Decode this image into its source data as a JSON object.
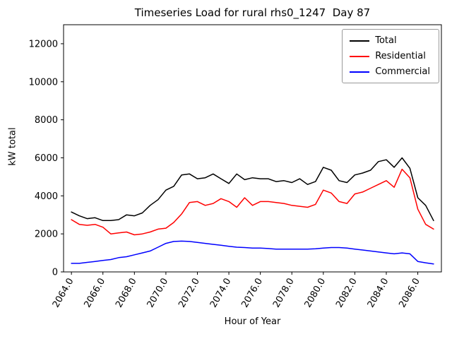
{
  "chart_data": {
    "type": "line",
    "title": "Timeseries Load for rural rhs0_1247  Day 87",
    "xlabel": "Hour of Year",
    "ylabel": "kW total",
    "xlim": [
      2063.5,
      2087.5
    ],
    "ylim": [
      0,
      13000
    ],
    "grid": false,
    "legend_position": "upper right",
    "xticks": {
      "values": [
        2064,
        2066,
        2068,
        2070,
        2072,
        2074,
        2076,
        2078,
        2080,
        2082,
        2084,
        2086
      ],
      "labels": [
        "2064.0",
        "2066.0",
        "2068.0",
        "2070.0",
        "2072.0",
        "2074.0",
        "2076.0",
        "2078.0",
        "2080.0",
        "2082.0",
        "2084.0",
        "2086.0"
      ]
    },
    "yticks": {
      "values": [
        0,
        2000,
        4000,
        6000,
        8000,
        10000,
        12000
      ],
      "labels": [
        "0",
        "2000",
        "4000",
        "6000",
        "8000",
        "10000",
        "12000"
      ]
    },
    "x": [
      2064.0,
      2064.5,
      2065.0,
      2065.5,
      2066.0,
      2066.5,
      2067.0,
      2067.5,
      2068.0,
      2068.5,
      2069.0,
      2069.5,
      2070.0,
      2070.5,
      2071.0,
      2071.5,
      2072.0,
      2072.5,
      2073.0,
      2073.5,
      2074.0,
      2074.5,
      2075.0,
      2075.5,
      2076.0,
      2076.5,
      2077.0,
      2077.5,
      2078.0,
      2078.5,
      2079.0,
      2079.5,
      2080.0,
      2080.5,
      2081.0,
      2081.5,
      2082.0,
      2082.5,
      2083.0,
      2083.5,
      2084.0,
      2084.5,
      2085.0,
      2085.5,
      2086.0,
      2086.5,
      2087.0
    ],
    "series": [
      {
        "name": "Total",
        "color": "#000000",
        "values": [
          3150,
          2950,
          2800,
          2850,
          2700,
          2700,
          2750,
          3000,
          2950,
          3100,
          3500,
          3800,
          4300,
          4500,
          5100,
          5150,
          4900,
          4950,
          5150,
          4900,
          4650,
          5150,
          4850,
          4950,
          4900,
          4900,
          4750,
          4800,
          4700,
          4900,
          4600,
          4750,
          5500,
          5350,
          4800,
          4700,
          5100,
          5200,
          5350,
          5800,
          5900,
          5500,
          6000,
          5450,
          3900,
          3500,
          2700
        ]
      },
      {
        "name": "Residential",
        "color": "#ff0000",
        "values": [
          2750,
          2500,
          2450,
          2500,
          2350,
          2000,
          2050,
          2100,
          1950,
          2000,
          2100,
          2250,
          2300,
          2600,
          3050,
          3650,
          3700,
          3500,
          3600,
          3850,
          3700,
          3400,
          3900,
          3500,
          3700,
          3700,
          3650,
          3600,
          3500,
          3450,
          3400,
          3550,
          4300,
          4150,
          3700,
          3600,
          4100,
          4200,
          4400,
          4600,
          4800,
          4450,
          5400,
          4950,
          3300,
          2500,
          2250
        ]
      },
      {
        "name": "Commercial",
        "color": "#0000ff",
        "values": [
          450,
          450,
          500,
          550,
          600,
          650,
          750,
          800,
          900,
          1000,
          1100,
          1300,
          1500,
          1600,
          1620,
          1600,
          1550,
          1500,
          1450,
          1400,
          1350,
          1300,
          1280,
          1250,
          1250,
          1230,
          1200,
          1200,
          1200,
          1200,
          1200,
          1220,
          1250,
          1280,
          1280,
          1250,
          1200,
          1150,
          1100,
          1050,
          1000,
          950,
          1000,
          950,
          550,
          480,
          420
        ]
      }
    ]
  }
}
